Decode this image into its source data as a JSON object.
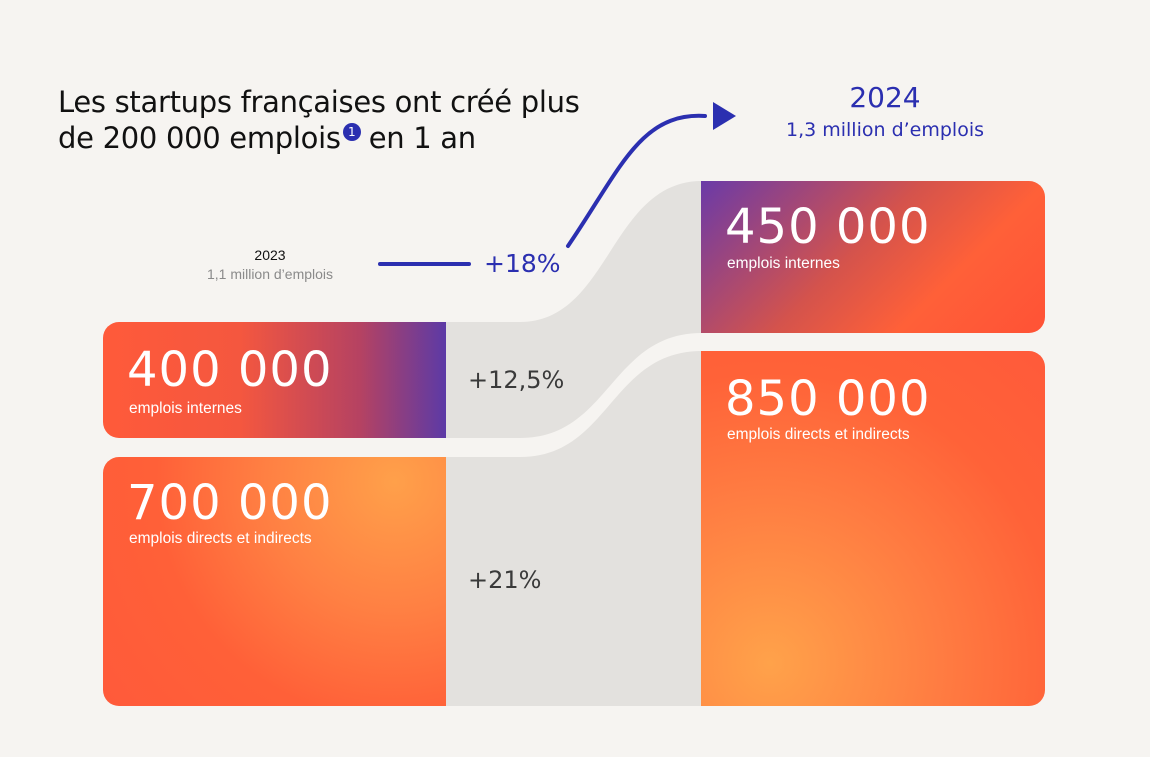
{
  "title": {
    "line1": "Les startups françaises ont créé plus",
    "line2": "de 200 000 emplois",
    "footnote": "1",
    "line2_end": "en 1 an"
  },
  "year_2023": {
    "year": "2023",
    "total": "1,1 million d’emplois"
  },
  "year_2024": {
    "year": "2024",
    "total": "1,3 million d’emplois"
  },
  "growth": {
    "total": "+18%",
    "internal": "+12,5%",
    "direct_indirect": "+21%"
  },
  "boxes": {
    "internal_2023": {
      "value": "400 000",
      "label": "emplois internes"
    },
    "direct_2023": {
      "value": "700 000",
      "label": "emplois directs et indirects"
    },
    "internal_2024": {
      "value": "450 000",
      "label": "emplois internes"
    },
    "direct_2024": {
      "value": "850 000",
      "label": "emplois directs et indirects"
    }
  },
  "colors": {
    "accent_blue": "#2b2fb0",
    "orange": "#ff5a3a",
    "light_orange": "#ffa04a",
    "purple": "#5c3aa6",
    "flow_gray": "#e3e1de",
    "background": "#f6f4f1"
  }
}
